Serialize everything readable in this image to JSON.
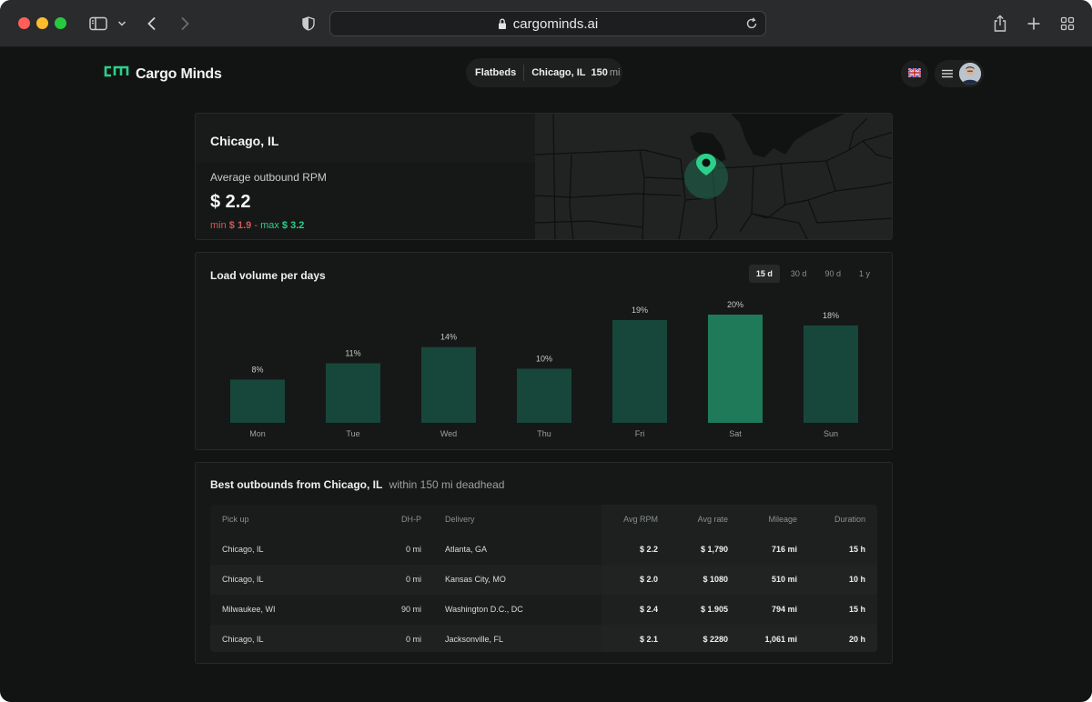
{
  "browser": {
    "url": "cargominds.ai"
  },
  "brand": {
    "name": "Cargo Minds",
    "accent": "#2ecf8a"
  },
  "search": {
    "equipment": "Flatbeds",
    "location": "Chicago, IL",
    "radius": "150",
    "radius_unit": "mi"
  },
  "summary": {
    "city": "Chicago, IL",
    "rpm_label": "Average outbound RPM",
    "rpm_value": "$ 2.2",
    "min_label": "min",
    "min_value": "$ 1.9",
    "separator": "-",
    "max_label": "max",
    "max_value": "$ 3.2"
  },
  "volume": {
    "title": "Load volume per days",
    "ranges": [
      "15 d",
      "30 d",
      "90 d",
      "1 y"
    ],
    "active_range": "15 d"
  },
  "chart_data": {
    "type": "bar",
    "categories": [
      "Mon",
      "Tue",
      "Wed",
      "Thu",
      "Fri",
      "Sat",
      "Sun"
    ],
    "values": [
      8,
      11,
      14,
      10,
      19,
      20,
      18
    ],
    "labels": [
      "8%",
      "11%",
      "14%",
      "10%",
      "19%",
      "20%",
      "18%"
    ],
    "highlight": "Sat",
    "colors": {
      "bar": "#17473a",
      "highlight": "#1f7a5a"
    },
    "ylim": [
      0,
      25
    ]
  },
  "outbounds": {
    "title": "Best outbounds from Chicago, IL",
    "subtitle": "within 150 mi deadhead",
    "columns": [
      "Pick up",
      "DH-P",
      "Delivery",
      "Avg RPM",
      "Avg rate",
      "Mileage",
      "Duration"
    ],
    "rows": [
      {
        "pickup": "Chicago, IL",
        "dhp": "0 mi",
        "delivery": "Atlanta, GA",
        "rpm": "$ 2.2",
        "rate": "$ 1,790",
        "mileage": "716 mi",
        "duration": "15 h"
      },
      {
        "pickup": "Chicago, IL",
        "dhp": "0 mi",
        "delivery": "Kansas City, MO",
        "rpm": "$ 2.0",
        "rate": "$ 1080",
        "mileage": "510 mi",
        "duration": "10 h"
      },
      {
        "pickup": "Milwaukee, WI",
        "dhp": "90 mi",
        "delivery": "Washington D.C., DC",
        "rpm": "$ 2.4",
        "rate": "$ 1.905",
        "mileage": "794 mi",
        "duration": "15 h"
      },
      {
        "pickup": "Chicago, IL",
        "dhp": "0 mi",
        "delivery": "Jacksonville, FL",
        "rpm": "$ 2.1",
        "rate": "$ 2280",
        "mileage": "1,061  mi",
        "duration": "20 h"
      }
    ]
  }
}
